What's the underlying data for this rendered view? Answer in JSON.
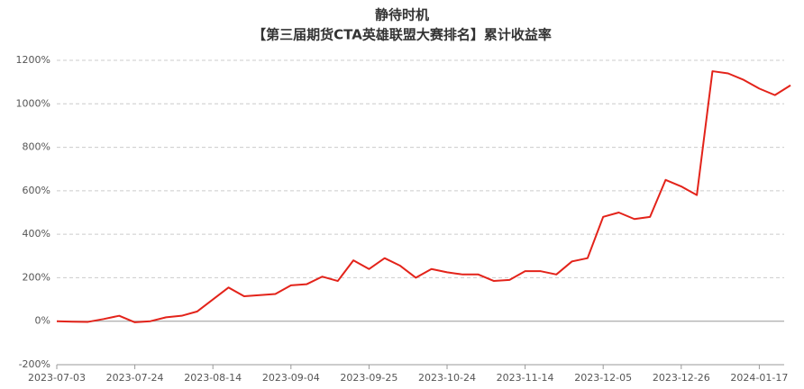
{
  "chart_data": {
    "type": "line",
    "title": "静待时机",
    "subtitle": "【第三届期货CTA英雄联盟大赛排名】累计收益率",
    "categories": [
      "2023-07-03",
      null,
      null,
      null,
      null,
      "2023-07-24",
      null,
      null,
      null,
      null,
      "2023-08-14",
      null,
      null,
      null,
      null,
      "2023-09-04",
      null,
      null,
      null,
      null,
      "2023-09-25",
      null,
      null,
      null,
      null,
      "2023-10-24",
      null,
      null,
      null,
      null,
      "2023-11-14",
      null,
      null,
      null,
      null,
      "2023-12-05",
      null,
      null,
      null,
      null,
      "2023-12-26",
      null,
      null,
      null,
      null,
      "2024-01-17",
      null,
      null
    ],
    "series": [
      {
        "name": "累计收益率",
        "color": "#e3231a",
        "values": [
          0,
          -2,
          -3,
          10,
          25,
          -5,
          0,
          18,
          25,
          45,
          100,
          155,
          115,
          120,
          125,
          165,
          170,
          205,
          185,
          280,
          240,
          290,
          255,
          200,
          240,
          225,
          215,
          215,
          185,
          190,
          230,
          230,
          215,
          275,
          290,
          480,
          500,
          470,
          480,
          650,
          620,
          580,
          1150,
          1140,
          1110,
          1070,
          1040,
          1085
        ]
      }
    ],
    "ylim": [
      -200,
      1200
    ],
    "yticks": [
      {
        "value": -200,
        "label": "-200%"
      },
      {
        "value": 0,
        "label": "0%"
      },
      {
        "value": 200,
        "label": "200%"
      },
      {
        "value": 400,
        "label": "400%"
      },
      {
        "value": 600,
        "label": "600%"
      },
      {
        "value": 800,
        "label": "800%"
      },
      {
        "value": 1000,
        "label": "1000%"
      },
      {
        "value": 1200,
        "label": "1200%"
      }
    ],
    "grid": true
  }
}
